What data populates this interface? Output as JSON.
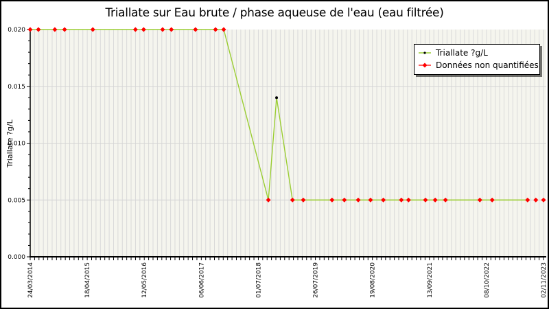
{
  "window": {
    "title": "Triallate sur Eau brute / phase aqueuse de l'eau (eau filtrée)"
  },
  "legend": {
    "entries": [
      {
        "label": "Triallate ?g/L",
        "marker": "green-line-black-dot"
      },
      {
        "label": "Données non quantifiées",
        "marker": "red-line-red-diamond"
      }
    ]
  },
  "colors": {
    "line": "#9ACD32",
    "non_quantified": "#FF0000",
    "quantified_marker": "#000000",
    "plot_bg": "#F5F5EE",
    "grid_vertical": "#D9D9D9",
    "grid_horizontal": "#D4D4D4",
    "axis": "#000000"
  },
  "chart_data": {
    "type": "line",
    "title": "Triallate sur Eau brute / phase aqueuse de l'eau (eau filtrée)",
    "xlabel": "",
    "ylabel": "Triallate ?g/L",
    "ylim": [
      0,
      0.02
    ],
    "y_ticks": [
      0,
      0.005,
      0.01,
      0.015,
      0.02
    ],
    "y_tick_labels": [
      "0.000",
      "0.005",
      "0.010",
      "0.015",
      "0.020"
    ],
    "y_minor_step": 0.001,
    "x_tick_labels": [
      "24/03/2014",
      "18/04/2015",
      "12/05/2016",
      "06/06/2017",
      "01/07/2018",
      "26/07/2019",
      "19/08/2020",
      "13/09/2021",
      "08/10/2022",
      "02/11/2023"
    ],
    "x_minor_per_interval": 13,
    "grid": true,
    "legend_position": "top-right",
    "note": "t = fraction of x-axis from 24/03/2014 (0) to 02/11/2023 (1); date_est estimated from axis",
    "line_path": [
      [
        0.0,
        0.02
      ],
      [
        0.016,
        0.02
      ],
      [
        0.048,
        0.02
      ],
      [
        0.067,
        0.02
      ],
      [
        0.122,
        0.02
      ],
      [
        0.205,
        0.02
      ],
      [
        0.221,
        0.02
      ],
      [
        0.258,
        0.02
      ],
      [
        0.275,
        0.02
      ],
      [
        0.322,
        0.02
      ],
      [
        0.361,
        0.02
      ],
      [
        0.377,
        0.02
      ],
      [
        0.464,
        0.005
      ],
      [
        0.48,
        0.014
      ],
      [
        0.511,
        0.005
      ],
      [
        0.532,
        0.005
      ],
      [
        0.588,
        0.005
      ],
      [
        0.612,
        0.005
      ],
      [
        0.639,
        0.005
      ],
      [
        0.663,
        0.005
      ],
      [
        0.688,
        0.005
      ],
      [
        0.723,
        0.005
      ],
      [
        0.737,
        0.005
      ],
      [
        0.77,
        0.005
      ],
      [
        0.789,
        0.005
      ],
      [
        0.809,
        0.005
      ],
      [
        0.876,
        0.005
      ],
      [
        0.9,
        0.005
      ],
      [
        0.969,
        0.005
      ]
    ],
    "series": [
      {
        "name": "Triallate ?g/L",
        "marker": "black-dot",
        "points": [
          {
            "t": 0.48,
            "v": 0.014,
            "date_est": "~11/2018"
          }
        ]
      },
      {
        "name": "Données non quantifiées",
        "marker": "red-diamond",
        "points": [
          {
            "t": 0.0,
            "v": 0.02,
            "date_est": "24/03/2014"
          },
          {
            "t": 0.016,
            "v": 0.02,
            "date_est": "~05/2014"
          },
          {
            "t": 0.048,
            "v": 0.02,
            "date_est": "~09/2014"
          },
          {
            "t": 0.067,
            "v": 0.02,
            "date_est": "~11/2014"
          },
          {
            "t": 0.122,
            "v": 0.02,
            "date_est": "~05/2015"
          },
          {
            "t": 0.205,
            "v": 0.02,
            "date_est": "~03/2016"
          },
          {
            "t": 0.221,
            "v": 0.02,
            "date_est": "~05/2016"
          },
          {
            "t": 0.258,
            "v": 0.02,
            "date_est": "~09/2016"
          },
          {
            "t": 0.275,
            "v": 0.02,
            "date_est": "~11/2016"
          },
          {
            "t": 0.322,
            "v": 0.02,
            "date_est": "~04/2017"
          },
          {
            "t": 0.361,
            "v": 0.02,
            "date_est": "~09/2017"
          },
          {
            "t": 0.377,
            "v": 0.02,
            "date_est": "~11/2017"
          },
          {
            "t": 0.464,
            "v": 0.005,
            "date_est": "~09/2018"
          },
          {
            "t": 0.511,
            "v": 0.005,
            "date_est": "~02/2019"
          },
          {
            "t": 0.532,
            "v": 0.005,
            "date_est": "~05/2019"
          },
          {
            "t": 0.588,
            "v": 0.005,
            "date_est": "~11/2019"
          },
          {
            "t": 0.612,
            "v": 0.005,
            "date_est": "~02/2020"
          },
          {
            "t": 0.639,
            "v": 0.005,
            "date_est": "~05/2020"
          },
          {
            "t": 0.663,
            "v": 0.005,
            "date_est": "~08/2020"
          },
          {
            "t": 0.688,
            "v": 0.005,
            "date_est": "~11/2020"
          },
          {
            "t": 0.723,
            "v": 0.005,
            "date_est": "~03/2021"
          },
          {
            "t": 0.737,
            "v": 0.005,
            "date_est": "~04/2021"
          },
          {
            "t": 0.77,
            "v": 0.005,
            "date_est": "~08/2021"
          },
          {
            "t": 0.789,
            "v": 0.005,
            "date_est": "~10/2021"
          },
          {
            "t": 0.809,
            "v": 0.005,
            "date_est": "~01/2022"
          },
          {
            "t": 0.876,
            "v": 0.005,
            "date_est": "~08/2022"
          },
          {
            "t": 0.9,
            "v": 0.005,
            "date_est": "~11/2022"
          },
          {
            "t": 0.969,
            "v": 0.005,
            "date_est": "~07/2023"
          },
          {
            "t": 0.985,
            "v": 0.005,
            "date_est": "~09/2023"
          },
          {
            "t": 1.0,
            "v": 0.005,
            "date_est": "02/11/2023"
          }
        ]
      }
    ]
  }
}
